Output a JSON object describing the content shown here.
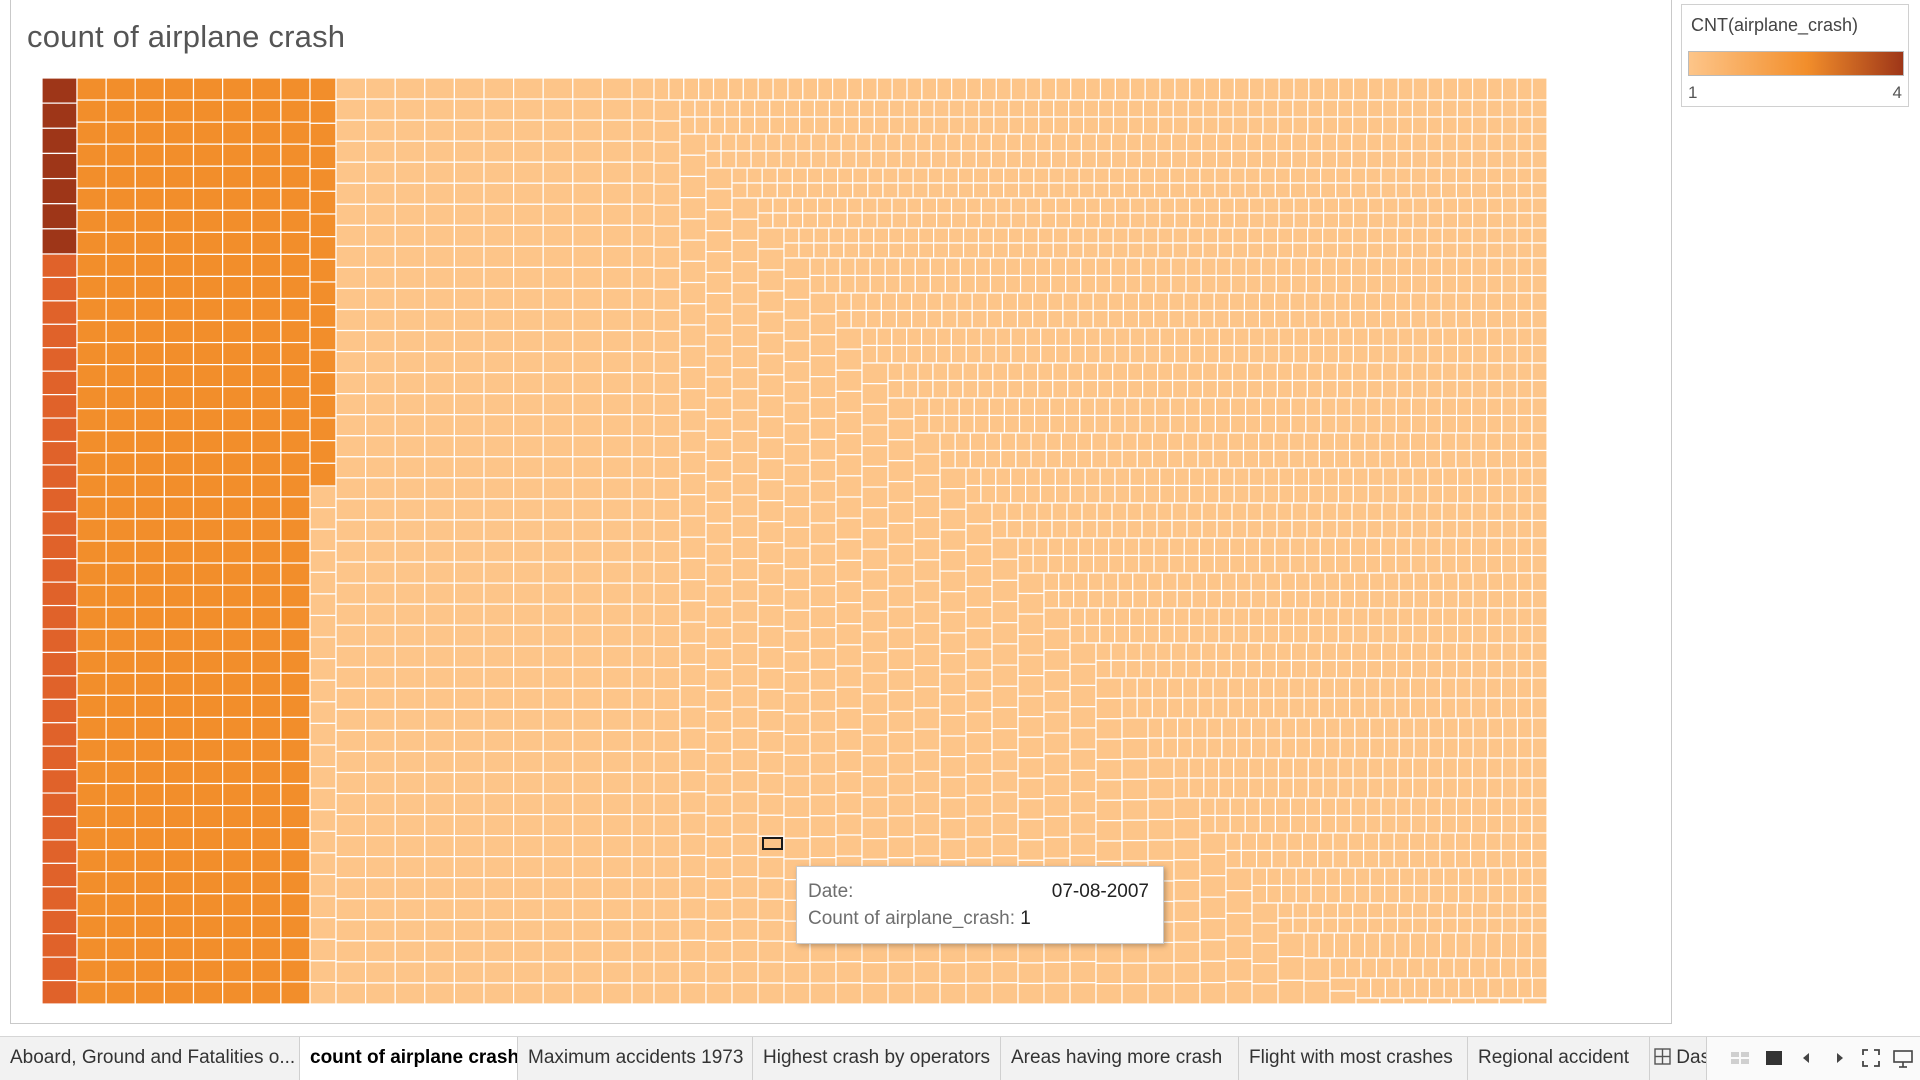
{
  "sheet": {
    "title": "count of airplane crash"
  },
  "legend": {
    "title": "CNT(airplane_crash)",
    "min_label": "1",
    "max_label": "4",
    "colors": [
      "#fdc589",
      "#f28e2b",
      "#9e3618"
    ]
  },
  "chart_data": {
    "type": "treemap",
    "measure": "CNT(airplane_crash)",
    "dimension": "Date",
    "color_range": [
      1,
      4
    ],
    "colors": {
      "4": "#9e3618",
      "3": "#e0622a",
      "2": "#f28e2b",
      "1": "#fdc589"
    },
    "highlighted_mark": {
      "date": "07-08-2007",
      "count": 1
    }
  },
  "tooltip": {
    "date_label": "Date:",
    "date_value": "07-08-2007",
    "count_label": "Count of airplane_crash:",
    "count_value": "1"
  },
  "tabs": [
    {
      "label": "Aboard, Ground and Fatalities o...",
      "active": false
    },
    {
      "label": "count of airplane crash",
      "active": true
    },
    {
      "label": "Maximum accidents 1973",
      "active": false
    },
    {
      "label": "Highest crash by operators",
      "active": false
    },
    {
      "label": "Areas having more crash",
      "active": false
    },
    {
      "label": "Flight with most crashes",
      "active": false
    },
    {
      "label": "Regional accident",
      "active": false
    }
  ],
  "dashboard_tab": {
    "label": "Das",
    "icon": "grid-icon"
  },
  "nav_controls": [
    "film-strip-icon",
    "sheet-icon",
    "previous-icon",
    "next-icon",
    "fullscreen-icon",
    "presentation-icon"
  ]
}
